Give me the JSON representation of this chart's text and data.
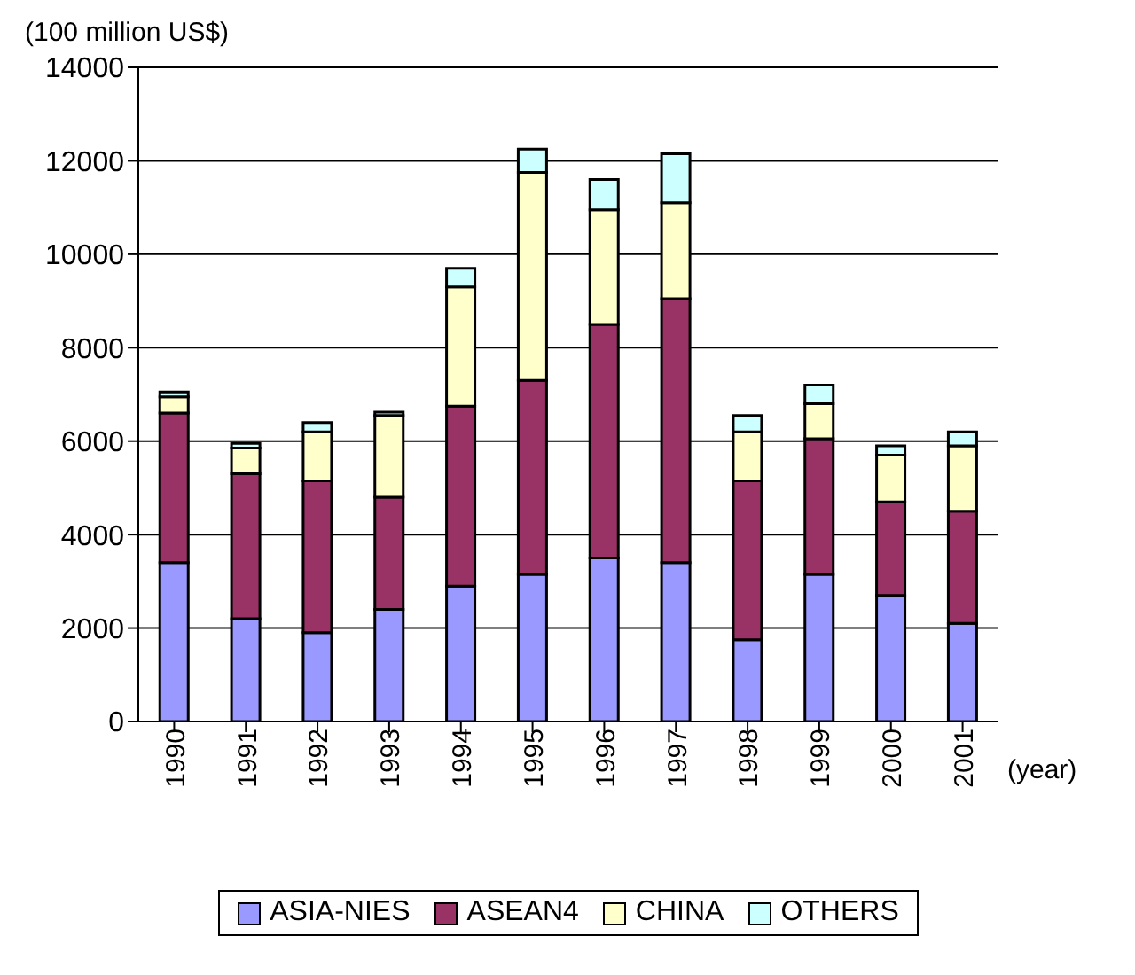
{
  "chart_data": {
    "type": "bar",
    "stacked": true,
    "ylabel": "(100 million US$)",
    "xlabel": "(year)",
    "categories": [
      "1990",
      "1991",
      "1992",
      "1993",
      "1994",
      "1995",
      "1996",
      "1997",
      "1998",
      "1999",
      "2000",
      "2001"
    ],
    "series": [
      {
        "name": "ASIA-NIES",
        "color": "#9999ff",
        "values": [
          3400,
          2200,
          1900,
          2400,
          2900,
          3150,
          3500,
          3400,
          1750,
          3150,
          2700,
          2100
        ]
      },
      {
        "name": "ASEAN4",
        "color": "#993366",
        "values": [
          3200,
          3100,
          3250,
          2400,
          3850,
          4150,
          5000,
          5650,
          3400,
          2900,
          2000,
          2400
        ]
      },
      {
        "name": "CHINA",
        "color": "#ffffcc",
        "values": [
          350,
          550,
          1050,
          1750,
          2550,
          4450,
          2450,
          2050,
          1050,
          750,
          1000,
          1400
        ]
      },
      {
        "name": "OTHERS",
        "color": "#ccffff",
        "values": [
          100,
          100,
          200,
          70,
          400,
          500,
          650,
          1050,
          350,
          400,
          200,
          300
        ]
      }
    ],
    "ylim": [
      0,
      14000
    ],
    "yticks": [
      0,
      2000,
      4000,
      6000,
      8000,
      10000,
      12000,
      14000
    ],
    "grid": "y",
    "legend": "bottom"
  }
}
